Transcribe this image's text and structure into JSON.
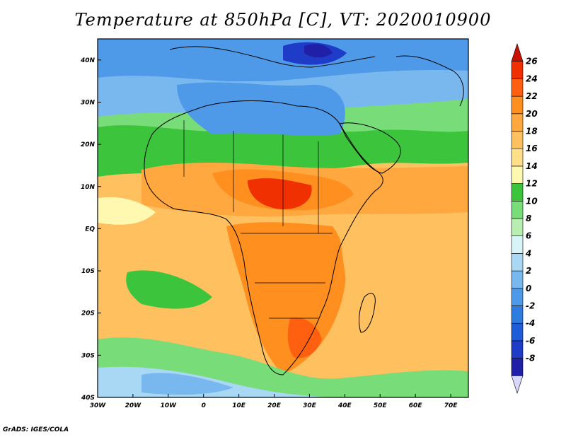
{
  "title": "Temperature at 850hPa [C], VT: 2020010900",
  "credit": "GrADS: IGES/COLA",
  "map": {
    "lat_labels": [
      "40N",
      "30N",
      "20N",
      "10N",
      "EQ",
      "10S",
      "20S",
      "30S",
      "40S"
    ],
    "lon_labels": [
      "30W",
      "20W",
      "10W",
      "0",
      "10E",
      "20E",
      "30E",
      "40E",
      "50E",
      "60E",
      "70E"
    ],
    "lat_range": [
      -40,
      45
    ],
    "lon_range": [
      -30,
      75
    ]
  },
  "colorbar": {
    "labels": [
      "26",
      "24",
      "22",
      "20",
      "18",
      "16",
      "14",
      "12",
      "10",
      "8",
      "6",
      "4",
      "2",
      "0",
      "-2",
      "-4",
      "-6",
      "-8"
    ],
    "colors": [
      "#d8d8ff",
      "#1f1fa8",
      "#1e3cc8",
      "#1e5cd8",
      "#2e7ce0",
      "#4e9ae8",
      "#78b8ee",
      "#a8d8f4",
      "#d8f4f8",
      "#b8eeb0",
      "#78dc78",
      "#3cc43c",
      "#fff8b0",
      "#ffe088",
      "#ffc060",
      "#ffa840",
      "#ff9020",
      "#ff6010",
      "#f03000",
      "#c81000"
    ]
  }
}
